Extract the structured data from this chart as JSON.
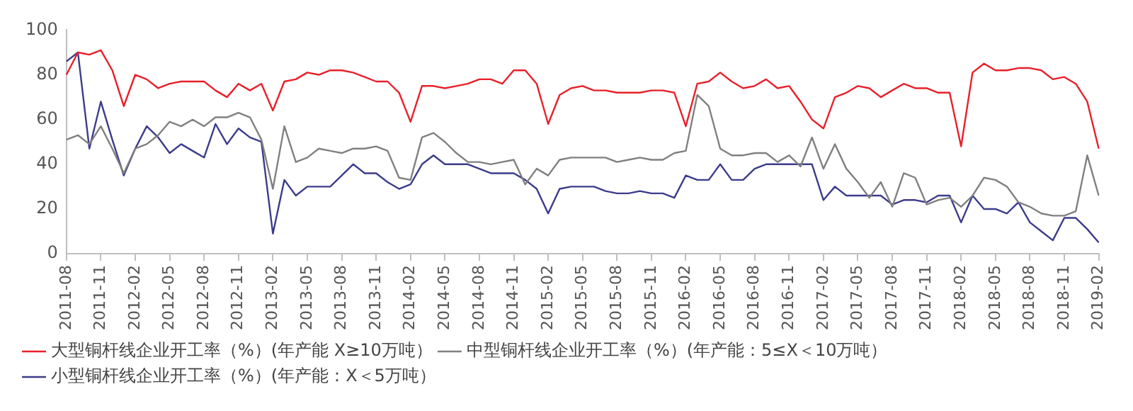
{
  "chart_data": {
    "type": "line",
    "categories": [
      "2011-08",
      null,
      null,
      "2011-11",
      null,
      null,
      "2012-02",
      null,
      null,
      "2012-05",
      null,
      null,
      "2012-08",
      null,
      null,
      "2012-11",
      null,
      null,
      "2013-02",
      null,
      null,
      "2013-05",
      null,
      null,
      "2013-08",
      null,
      null,
      "2013-11",
      null,
      null,
      "2014-02",
      null,
      null,
      "2014-05",
      null,
      null,
      "2014-08",
      null,
      null,
      "2014-11",
      null,
      null,
      "2015-02",
      null,
      null,
      "2015-05",
      null,
      null,
      "2015-08",
      null,
      null,
      "2015-11",
      null,
      null,
      "2016-02",
      null,
      null,
      "2016-05",
      null,
      null,
      "2016-08",
      null,
      null,
      "2016-11",
      null,
      null,
      "2017-02",
      null,
      null,
      "2017-05",
      null,
      null,
      "2017-08",
      null,
      null,
      "2017-11",
      null,
      null,
      "2018-02",
      null,
      null,
      "2018-05",
      null,
      null,
      "2018-08",
      null,
      null,
      "2018-11",
      null,
      null,
      "2019-02"
    ],
    "series": [
      {
        "name": "大型铜杆线企业开工率（%）(年产能 X≥10万吨）",
        "color": "#e8202a",
        "values": [
          80,
          90,
          89,
          91,
          82,
          66,
          80,
          78,
          74,
          76,
          77,
          77,
          77,
          73,
          70,
          76,
          73,
          76,
          64,
          77,
          78,
          81,
          80,
          82,
          82,
          81,
          79,
          77,
          77,
          72,
          59,
          75,
          75,
          74,
          75,
          76,
          78,
          78,
          76,
          82,
          82,
          76,
          58,
          71,
          74,
          75,
          73,
          73,
          72,
          72,
          72,
          73,
          73,
          72,
          57,
          76,
          77,
          81,
          77,
          74,
          75,
          78,
          74,
          75,
          68,
          60,
          56,
          70,
          72,
          75,
          74,
          70,
          73,
          76,
          74,
          74,
          72,
          72,
          48,
          81,
          85,
          82,
          82,
          83,
          83,
          82,
          78,
          79,
          76,
          68,
          47
        ]
      },
      {
        "name": "中型铜杆线企业开工率（%）(年产能：5≤X＜10万吨）",
        "color": "#808080",
        "values": [
          51,
          53,
          49,
          57,
          47,
          36,
          47,
          49,
          53,
          59,
          57,
          60,
          57,
          61,
          61,
          63,
          61,
          51,
          29,
          57,
          41,
          43,
          47,
          46,
          45,
          47,
          47,
          48,
          46,
          34,
          33,
          52,
          54,
          50,
          45,
          41,
          41,
          40,
          41,
          42,
          31,
          38,
          35,
          42,
          43,
          43,
          43,
          43,
          41,
          42,
          43,
          42,
          42,
          45,
          46,
          71,
          66,
          47,
          44,
          44,
          45,
          45,
          41,
          44,
          39,
          52,
          38,
          49,
          38,
          32,
          25,
          32,
          21,
          36,
          34,
          22,
          24,
          25,
          21,
          26,
          34,
          33,
          30,
          23,
          21,
          18,
          17,
          17,
          19,
          44,
          26
        ]
      },
      {
        "name": "小型铜杆线企业开工率（%）(年产能：X＜5万吨）",
        "color": "#3c3c8c",
        "values": [
          86,
          90,
          47,
          68,
          51,
          35,
          47,
          57,
          52,
          45,
          49,
          46,
          43,
          58,
          49,
          56,
          52,
          50,
          9,
          33,
          26,
          30,
          30,
          30,
          35,
          40,
          36,
          36,
          32,
          29,
          31,
          40,
          44,
          40,
          40,
          40,
          38,
          36,
          36,
          36,
          33,
          29,
          18,
          29,
          30,
          30,
          30,
          28,
          27,
          27,
          28,
          27,
          27,
          25,
          35,
          33,
          33,
          40,
          33,
          33,
          38,
          40,
          40,
          40,
          40,
          40,
          24,
          30,
          26,
          26,
          26,
          26,
          22,
          24,
          24,
          23,
          26,
          26,
          14,
          26,
          20,
          20,
          18,
          23,
          14,
          10,
          6,
          16,
          16,
          11,
          5
        ]
      }
    ],
    "ylim": [
      0,
      100
    ],
    "yticks": [
      0,
      20,
      40,
      60,
      80,
      100
    ],
    "legend": "bottom",
    "line_style": "solid"
  }
}
